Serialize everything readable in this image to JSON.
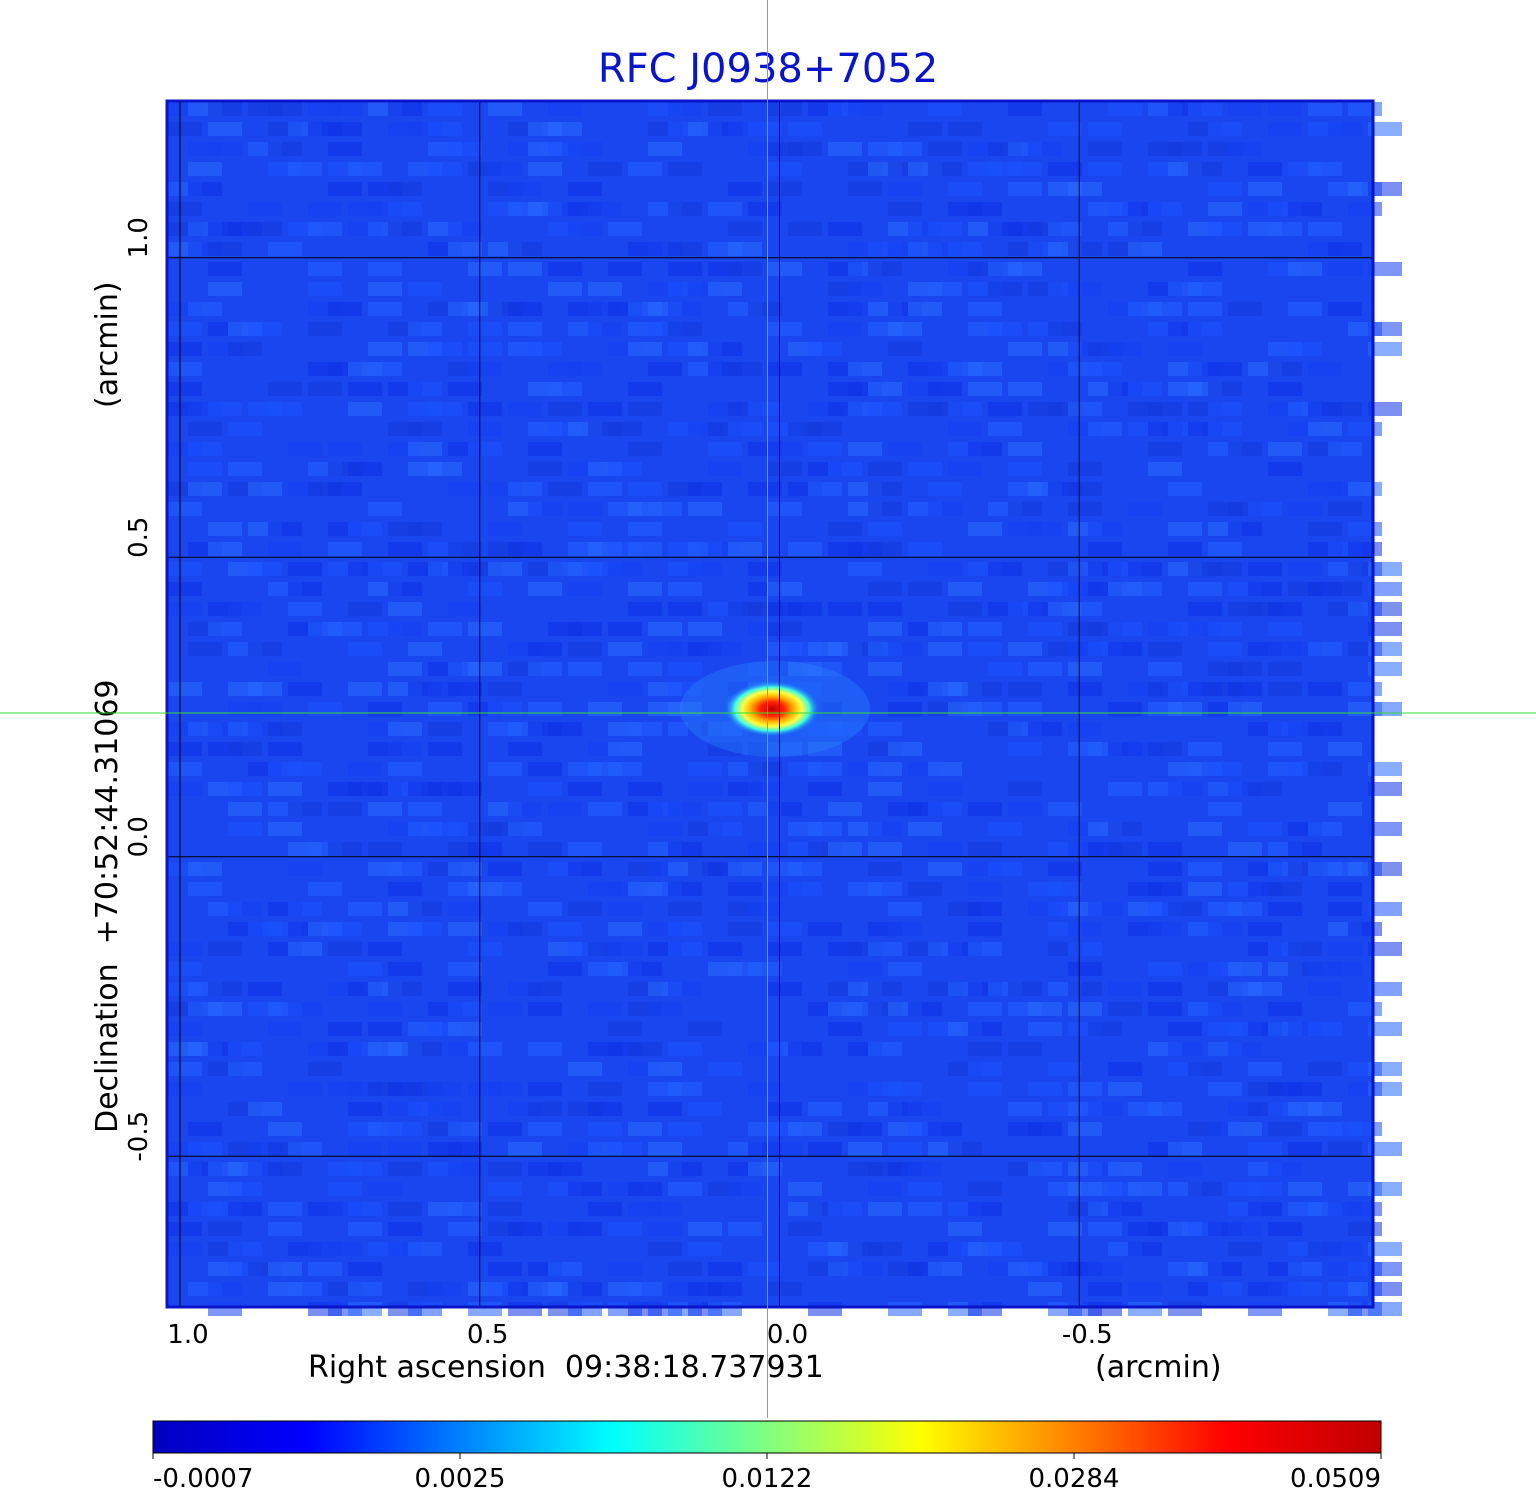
{
  "chart_data": {
    "type": "heatmap",
    "title": "RFC J0938+7052",
    "xlabel": "Right ascension  09:38:18.737931",
    "xunit": "(arcmin)",
    "ylabel": "Declination  +70:52:44.31069",
    "yunit": "(arcmin)",
    "x_ticks": [
      1.0,
      0.5,
      0.0,
      -0.5
    ],
    "x_tick_labels": [
      "1.0",
      "0.5",
      "0.0",
      "-0.5"
    ],
    "y_ticks": [
      1.0,
      0.5,
      0.0,
      -0.5
    ],
    "y_tick_labels": [
      "1.0",
      "0.5",
      "0.0",
      "-0.5"
    ],
    "xlim": [
      1.02,
      -0.99
    ],
    "ylim": [
      -0.75,
      1.26
    ],
    "x_reversed": true,
    "grid": true,
    "crosshair": {
      "x": 0.02,
      "y": 0.24,
      "color": "#33dd33"
    },
    "source_peak": {
      "x": 0.0,
      "y": 0.24,
      "value": 0.0509
    },
    "background_level": -0.0007,
    "colormap": "jet",
    "colorbar": {
      "position": "bottom",
      "tick_labels": [
        "-0.0007",
        "0.0025",
        "0.0122",
        "0.0284",
        "0.0509"
      ],
      "tick_values": [
        -0.0007,
        0.0025,
        0.0122,
        0.0284,
        0.0509
      ],
      "colors": [
        "#0000c0",
        "#0000ff",
        "#0080ff",
        "#00ffff",
        "#80ff80",
        "#ffff00",
        "#ff8000",
        "#ff0000",
        "#c00000"
      ]
    },
    "frame_color": "#0a14c8"
  }
}
